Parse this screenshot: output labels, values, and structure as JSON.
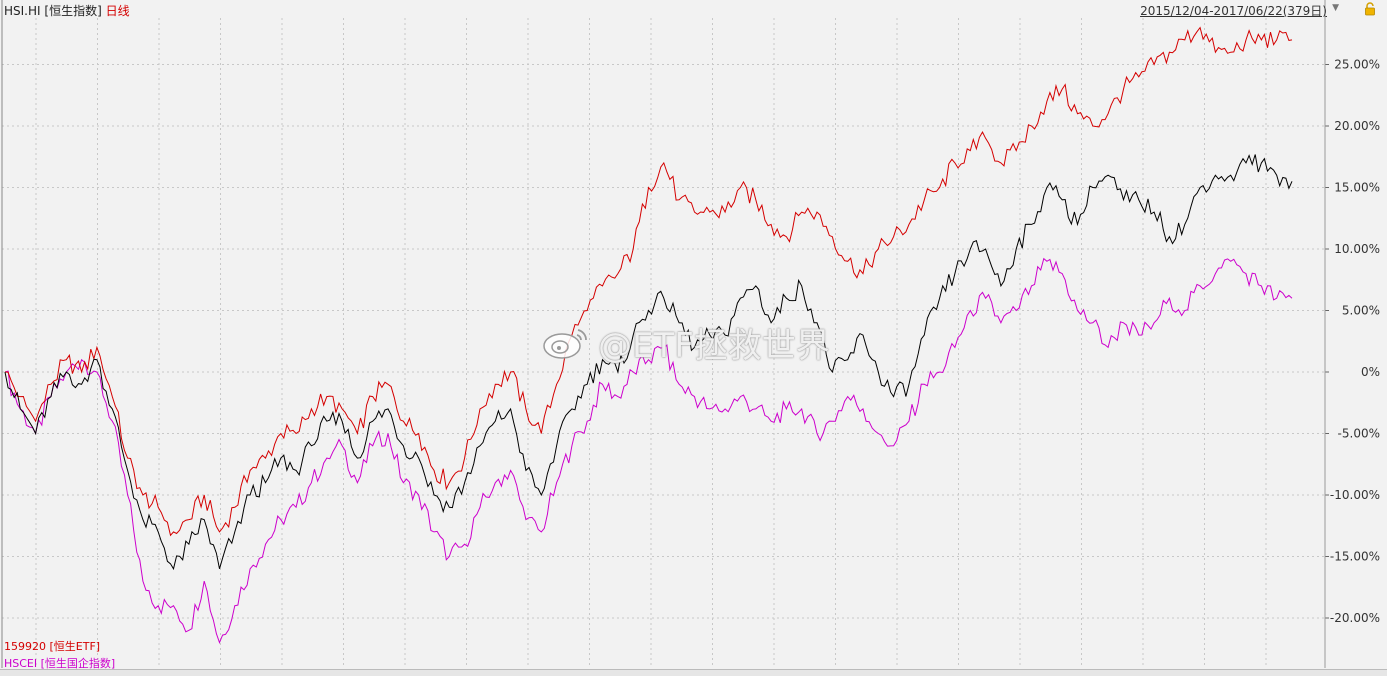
{
  "header": {
    "symbol": "HSI.HI",
    "name": "[恒生指数]",
    "period": "日线",
    "range": "2015/12/04-2017/06/22(379日)"
  },
  "watermark": {
    "text": "@ETF拯救世界"
  },
  "legend": {
    "red": "159920 [恒生ETF]",
    "magenta": "HSCEI [恒生国企指数]"
  },
  "colors": {
    "black": "#000000",
    "red": "#d40000",
    "magenta": "#cc00cc",
    "grid": "#c8c8c8",
    "axis": "#999999"
  },
  "chart_data": {
    "type": "line",
    "x_range": [
      "2015/12/04",
      "2017/06/22"
    ],
    "ylim": [
      -23,
      28
    ],
    "y_ticks": [
      "25.00%",
      "20.00%",
      "15.00%",
      "10.00%",
      "5.00%",
      "0%",
      "-5.00%",
      "-10.00%",
      "-15.00%",
      "-20.00%"
    ],
    "y_tick_values": [
      25,
      20,
      15,
      10,
      5,
      0,
      -5,
      -10,
      -15,
      -20
    ],
    "series": [
      {
        "name": "HSI.HI [恒生指数]",
        "color": "black",
        "values": [
          0,
          -3,
          -5,
          -2,
          0,
          -1,
          1,
          -3,
          -8,
          -12,
          -13,
          -16,
          -14,
          -12,
          -16,
          -13,
          -10,
          -9,
          -7,
          -8,
          -6,
          -4,
          -4,
          -7,
          -4,
          -3,
          -6,
          -7,
          -10,
          -11,
          -9,
          -6,
          -4,
          -3,
          -8,
          -10,
          -6,
          -3,
          -1,
          1,
          0,
          3,
          5,
          6,
          4,
          2,
          3,
          3,
          6,
          7,
          4,
          6,
          7,
          4,
          0,
          1,
          3,
          0,
          -2,
          -1,
          3,
          6,
          8,
          10,
          10,
          7,
          10,
          12,
          15,
          14,
          12,
          15,
          16,
          14,
          14,
          13,
          11,
          12,
          15,
          16,
          16,
          17,
          17,
          16,
          15.5
        ]
      },
      {
        "name": "159920 [恒生ETF]",
        "color": "red",
        "values": [
          0,
          -2,
          -4,
          -1,
          1,
          0,
          2,
          -2,
          -7,
          -10,
          -11,
          -13,
          -12,
          -10,
          -13,
          -11,
          -8,
          -7,
          -5,
          -5,
          -3,
          -2,
          -3,
          -5,
          -2,
          -1,
          -4,
          -5,
          -8,
          -9,
          -7,
          -3,
          -1,
          0,
          -3,
          -5,
          -1,
          3,
          5,
          7,
          8,
          10,
          15,
          17,
          14,
          13,
          13,
          13,
          15,
          14,
          12,
          11,
          13,
          13,
          11,
          9,
          8,
          10,
          11,
          12,
          14,
          15,
          17,
          18,
          19,
          17,
          18,
          20,
          22,
          23,
          21,
          20,
          21,
          23,
          24,
          25,
          26,
          27,
          28,
          26,
          26,
          27,
          27,
          27,
          27
        ]
      },
      {
        "name": "HSCEI [恒生国企指数]",
        "color": "magenta",
        "values": [
          0,
          -3,
          -5,
          -2,
          0,
          1,
          0,
          -4,
          -10,
          -17,
          -19,
          -19,
          -21,
          -17,
          -22,
          -19,
          -16,
          -14,
          -12,
          -11,
          -9,
          -7,
          -6,
          -9,
          -6,
          -5,
          -9,
          -10,
          -13,
          -15,
          -14,
          -11,
          -9,
          -8,
          -12,
          -13,
          -9,
          -6,
          -4,
          -1,
          -2,
          0,
          1,
          2,
          -1,
          -2,
          -3,
          -3,
          -2,
          -3,
          -4,
          -3,
          -3,
          -5,
          -4,
          -2,
          -3,
          -5,
          -6,
          -4,
          -1,
          0,
          2,
          5,
          6,
          4,
          5,
          7,
          9,
          8,
          5,
          4,
          2,
          4,
          3,
          4,
          6,
          5,
          7,
          8,
          9,
          8,
          7,
          6,
          6
        ]
      }
    ],
    "grid": true
  }
}
